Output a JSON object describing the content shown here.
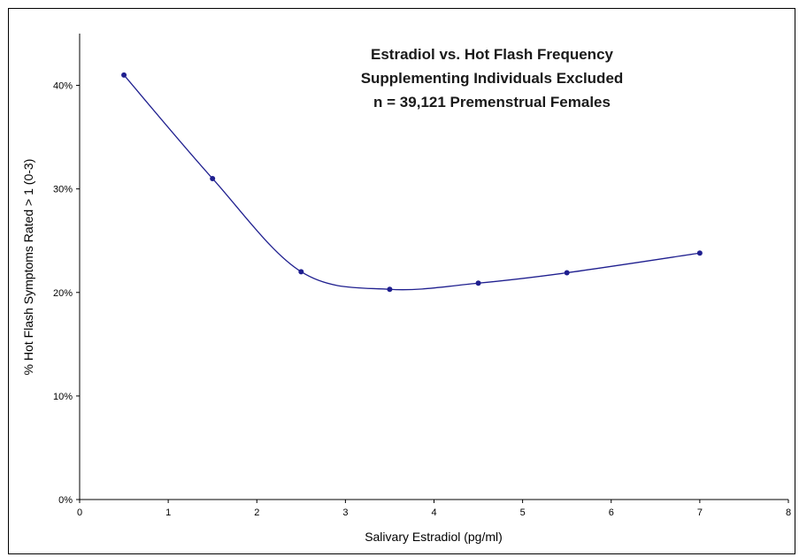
{
  "chart_data": {
    "type": "line",
    "title_lines": [
      "Estradiol vs. Hot Flash Frequency",
      "Supplementing Individuals Excluded",
      "n = 39,121 Premenstrual Females"
    ],
    "xlabel": "Salivary Estradiol (pg/ml)",
    "ylabel": "% Hot Flash Symptoms Rated > 1 (0-3)",
    "xlim": [
      0,
      8
    ],
    "ylim": [
      0,
      45
    ],
    "x_ticks": [
      "0",
      "1",
      "2",
      "3",
      "4",
      "5",
      "6",
      "7",
      "8"
    ],
    "y_ticks": [
      "0%",
      "10%",
      "20%",
      "30%",
      "40%"
    ],
    "grid": false,
    "smooth": true,
    "line_color": "#1f1f8f",
    "series": [
      {
        "x": [
          0.5,
          1.5,
          2.5,
          3.5,
          4.5,
          5.5,
          7
        ],
        "y": [
          41,
          31,
          22,
          20.3,
          20.9,
          21.9,
          23.8
        ]
      }
    ]
  }
}
